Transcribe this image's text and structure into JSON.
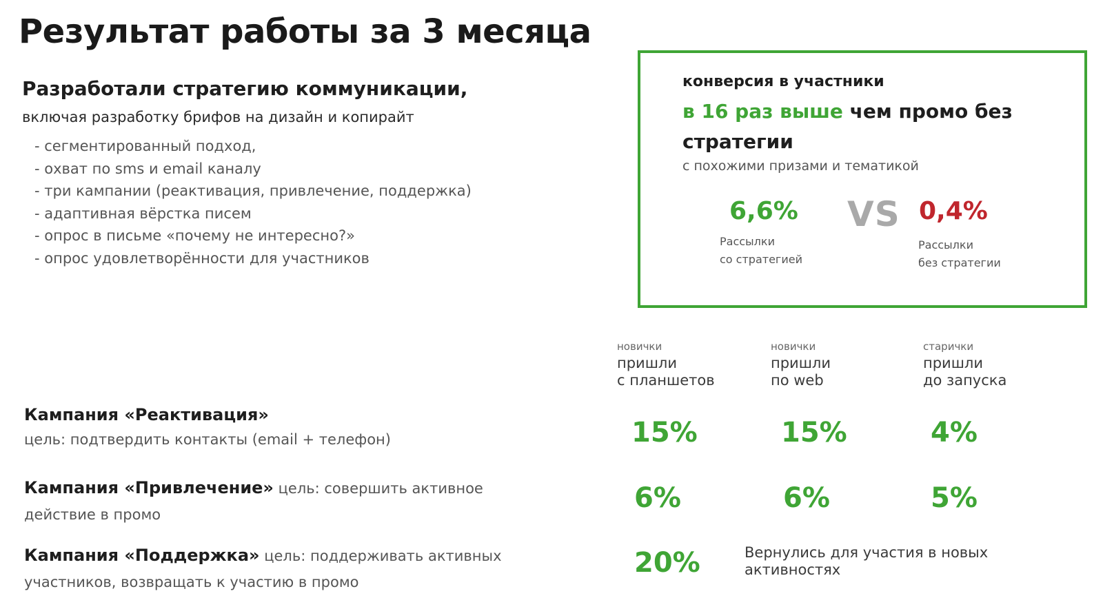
{
  "title": "Результат работы за 3 месяца",
  "strategy": {
    "heading": "Разработали стратегию коммуникации,",
    "subheading": "включая разработку брифов на дизайн и копирайт",
    "items": [
      "- сегментированный подход,",
      "- охват по sms и email каналу",
      "- три кампании (реактивация, привлечение, поддержка)",
      "- адаптивная вёрстка писем",
      "- опрос в письме «почему не интересно?»",
      "- опрос удовлетворённости для участников"
    ]
  },
  "conversion": {
    "label": "конверсия в участники",
    "highlight": "в 16 раз выше",
    "rest": " чем промо без",
    "line2": "стратегии",
    "note": "с похожими призами и тематикой",
    "with_value": "6,6%",
    "with_caption_1": "Рассылки",
    "with_caption_2": "со стратегией",
    "vs": "VS",
    "without_value": "0,4%",
    "without_caption_1": "Рассылки",
    "without_caption_2": "без стратегии"
  },
  "columns": [
    {
      "tag": "новички",
      "head_1": "пришли",
      "head_2": "с планшетов"
    },
    {
      "tag": "новички",
      "head_1": "пришли",
      "head_2": "по web"
    },
    {
      "tag": "старички",
      "head_1": "пришли",
      "head_2": "до запуска"
    }
  ],
  "campaigns": [
    {
      "name": "Кампания «Реактивация»",
      "goal": "цель: подтвердить контакты (email + телефон)",
      "stats": [
        "15%",
        "15%",
        "4%"
      ]
    },
    {
      "name": "Кампания «Привлечение»",
      "goal_1": " цель: совершить активное",
      "goal_2": "действие в промо",
      "stats": [
        "6%",
        "6%",
        "5%"
      ]
    },
    {
      "name": "Кампания «Поддержка»",
      "goal_1": " цель: поддерживать активных",
      "goal_2": "участников, возвращать к участию в промо",
      "stat": "20%",
      "note_1": "Вернулись для участия в новых",
      "note_2": "активностях"
    }
  ],
  "colors": {
    "accent_green": "#3fa535",
    "accent_red": "#c0262d",
    "vs_gray": "#a9a9a9"
  }
}
